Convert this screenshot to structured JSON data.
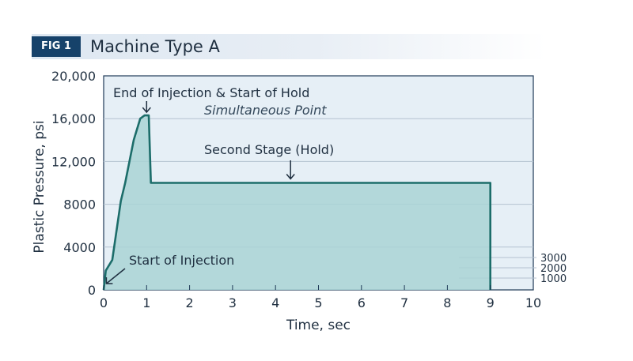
{
  "figure": {
    "badge": "FIG 1",
    "title": "Machine Type A"
  },
  "colors": {
    "line": "#1c6d6a",
    "fill": "#a9d3d5",
    "plot_bg": "#e6eff6",
    "badge": "#16426a"
  },
  "chart_data": {
    "type": "area",
    "xlabel": "Time, sec",
    "ylabel": "Plastic Pressure, psi",
    "xlim": [
      0,
      10
    ],
    "ylim": [
      0,
      20000
    ],
    "x_ticks": [
      0,
      1,
      2,
      3,
      4,
      5,
      6,
      7,
      8,
      9,
      10
    ],
    "y_ticks": [
      0,
      4000,
      8000,
      12000,
      16000,
      20000
    ],
    "y_tick_labels": [
      "0",
      "4000",
      "8000",
      "12,000",
      "16,000",
      "20,000"
    ],
    "grid": true,
    "series": [
      {
        "x": [
          0,
          0.05,
          0.2,
          0.4,
          0.5,
          0.7,
          0.85,
          0.95,
          1.05,
          1.1,
          9.0,
          9.0
        ],
        "y": [
          0,
          1800,
          2800,
          8300,
          10000,
          14000,
          16000,
          16300,
          16300,
          10000,
          10000,
          0
        ]
      }
    ],
    "annotations": [
      {
        "text": "End of Injection & Start of Hold",
        "x": 1.0,
        "y": 16300
      },
      {
        "text": "Simultaneous Point",
        "x": 1.0,
        "y": 16300,
        "italic": true
      },
      {
        "text": "Second Stage (Hold)",
        "x": 4.35,
        "y": 10000
      },
      {
        "text": "Start of Injection",
        "x": 0.1,
        "y": 0
      }
    ],
    "right_labels": [
      "3000",
      "2000",
      "1000"
    ]
  }
}
